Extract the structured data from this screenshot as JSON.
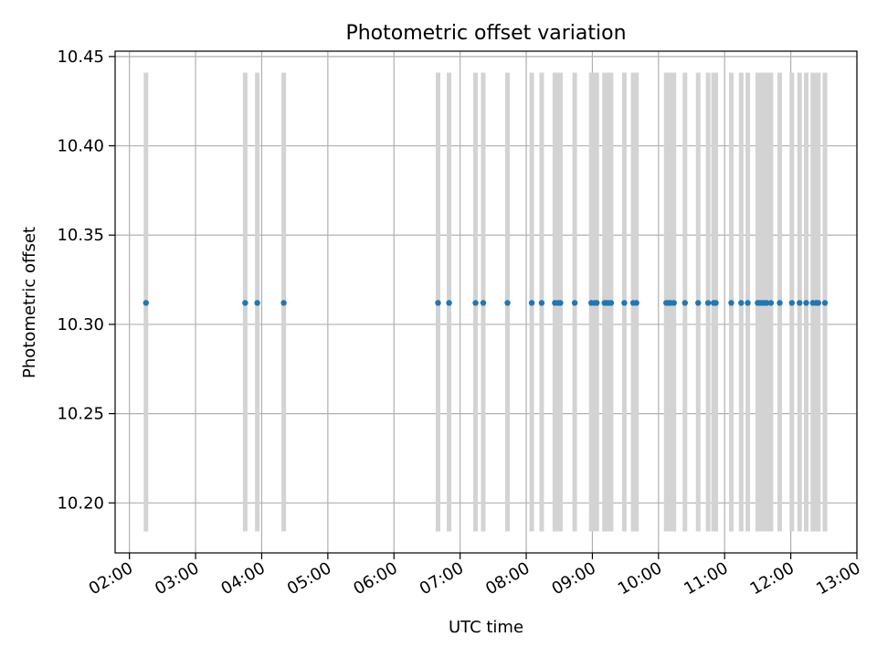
{
  "chart_data": {
    "type": "scatter",
    "title": "Photometric offset variation",
    "xlabel": "UTC time",
    "ylabel": "Photometric offset",
    "x_ticks": [
      "02:00",
      "03:00",
      "04:00",
      "05:00",
      "06:00",
      "07:00",
      "08:00",
      "09:00",
      "10:00",
      "11:00",
      "12:00",
      "13:00"
    ],
    "y_ticks": [
      "10.20",
      "10.25",
      "10.30",
      "10.35",
      "10.40",
      "10.45"
    ],
    "x_range": [
      "01:47",
      "13:00"
    ],
    "y_range": [
      10.172,
      10.453
    ],
    "grid": true,
    "errorbar_range": [
      10.184,
      10.441
    ],
    "series": [
      {
        "x": [
          "02:15",
          "03:45",
          "03:56",
          "04:20",
          "06:40",
          "06:50",
          "07:14",
          "07:21",
          "07:43",
          "08:05",
          "08:14",
          "08:26",
          "08:29",
          "08:31",
          "08:44",
          "08:59",
          "09:02",
          "09:04",
          "09:11",
          "09:13",
          "09:15",
          "09:17",
          "09:29",
          "09:37",
          "09:40",
          "10:07",
          "10:09",
          "10:11",
          "10:14",
          "10:24",
          "10:36",
          "10:45",
          "10:50",
          "10:52",
          "11:06",
          "11:15",
          "11:21",
          "11:30",
          "11:32",
          "11:34",
          "11:36",
          "11:38",
          "11:42",
          "11:50",
          "12:01",
          "12:08",
          "12:14",
          "12:20",
          "12:23",
          "12:25",
          "12:31"
        ],
        "y": [
          10.312,
          10.312,
          10.312,
          10.312,
          10.312,
          10.312,
          10.312,
          10.312,
          10.312,
          10.312,
          10.312,
          10.312,
          10.312,
          10.312,
          10.312,
          10.312,
          10.312,
          10.312,
          10.312,
          10.312,
          10.312,
          10.312,
          10.312,
          10.312,
          10.312,
          10.312,
          10.312,
          10.312,
          10.312,
          10.312,
          10.312,
          10.312,
          10.312,
          10.312,
          10.312,
          10.312,
          10.312,
          10.312,
          10.312,
          10.312,
          10.312,
          10.312,
          10.312,
          10.312,
          10.312,
          10.312,
          10.312,
          10.312,
          10.312,
          10.312,
          10.312
        ]
      }
    ],
    "colors": {
      "points": "#1f77b4",
      "errorbars": "#d3d3d3",
      "grid": "#b0b0b0"
    }
  }
}
